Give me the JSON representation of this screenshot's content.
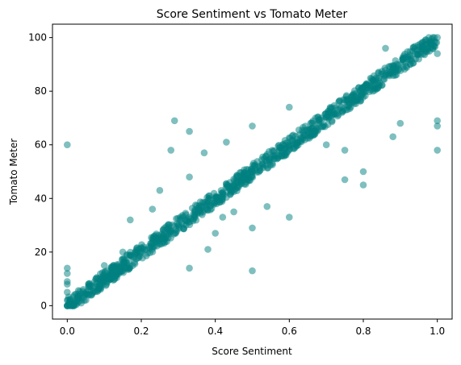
{
  "chart_data": {
    "type": "scatter",
    "title": "Score Sentiment vs Tomato Meter",
    "xlabel": "Score Sentiment",
    "ylabel": "Tomato Meter",
    "xlim": [
      -0.04,
      1.04
    ],
    "ylim": [
      -5,
      105
    ],
    "xticks": [
      0.0,
      0.2,
      0.4,
      0.6,
      0.8,
      1.0
    ],
    "xtick_labels": [
      "0.0",
      "0.2",
      "0.4",
      "0.6",
      "0.8",
      "1.0"
    ],
    "yticks": [
      0,
      20,
      40,
      60,
      80,
      100
    ],
    "ytick_labels": [
      "0",
      "20",
      "40",
      "60",
      "80",
      "100"
    ],
    "grid": false,
    "marker_color": "#008080",
    "marker_alpha": 0.5,
    "points": [
      [
        0.0,
        0
      ],
      [
        0.0,
        2
      ],
      [
        0.0,
        5
      ],
      [
        0.0,
        8
      ],
      [
        0.0,
        9
      ],
      [
        0.0,
        12
      ],
      [
        0.0,
        14
      ],
      [
        0.0,
        60
      ],
      [
        0.02,
        2
      ],
      [
        0.03,
        3
      ],
      [
        0.05,
        5
      ],
      [
        0.06,
        7
      ],
      [
        0.08,
        8
      ],
      [
        0.1,
        10
      ],
      [
        0.1,
        15
      ],
      [
        0.12,
        12
      ],
      [
        0.14,
        14
      ],
      [
        0.15,
        20
      ],
      [
        0.16,
        16
      ],
      [
        0.17,
        32
      ],
      [
        0.18,
        18
      ],
      [
        0.2,
        20
      ],
      [
        0.22,
        22
      ],
      [
        0.23,
        36
      ],
      [
        0.24,
        24
      ],
      [
        0.25,
        43
      ],
      [
        0.26,
        26
      ],
      [
        0.28,
        28
      ],
      [
        0.28,
        58
      ],
      [
        0.29,
        69
      ],
      [
        0.3,
        30
      ],
      [
        0.32,
        32
      ],
      [
        0.33,
        14
      ],
      [
        0.33,
        48
      ],
      [
        0.33,
        65
      ],
      [
        0.34,
        34
      ],
      [
        0.36,
        36
      ],
      [
        0.37,
        57
      ],
      [
        0.38,
        38
      ],
      [
        0.38,
        21
      ],
      [
        0.4,
        40
      ],
      [
        0.4,
        27
      ],
      [
        0.42,
        42
      ],
      [
        0.42,
        33
      ],
      [
        0.43,
        61
      ],
      [
        0.44,
        44
      ],
      [
        0.45,
        35
      ],
      [
        0.46,
        46
      ],
      [
        0.48,
        48
      ],
      [
        0.5,
        50
      ],
      [
        0.5,
        13
      ],
      [
        0.5,
        29
      ],
      [
        0.5,
        67
      ],
      [
        0.52,
        52
      ],
      [
        0.54,
        54
      ],
      [
        0.54,
        37
      ],
      [
        0.56,
        56
      ],
      [
        0.58,
        58
      ],
      [
        0.6,
        60
      ],
      [
        0.6,
        33
      ],
      [
        0.6,
        74
      ],
      [
        0.62,
        62
      ],
      [
        0.64,
        64
      ],
      [
        0.66,
        66
      ],
      [
        0.68,
        68
      ],
      [
        0.7,
        70
      ],
      [
        0.7,
        60
      ],
      [
        0.72,
        72
      ],
      [
        0.74,
        74
      ],
      [
        0.75,
        47
      ],
      [
        0.75,
        58
      ],
      [
        0.76,
        76
      ],
      [
        0.78,
        78
      ],
      [
        0.8,
        80
      ],
      [
        0.8,
        45
      ],
      [
        0.8,
        50
      ],
      [
        0.82,
        82
      ],
      [
        0.84,
        84
      ],
      [
        0.86,
        86
      ],
      [
        0.86,
        96
      ],
      [
        0.88,
        88
      ],
      [
        0.88,
        63
      ],
      [
        0.9,
        90
      ],
      [
        0.9,
        68
      ],
      [
        0.92,
        92
      ],
      [
        0.94,
        94
      ],
      [
        0.96,
        96
      ],
      [
        0.98,
        98
      ],
      [
        1.0,
        100
      ],
      [
        1.0,
        58
      ],
      [
        1.0,
        67
      ],
      [
        1.0,
        69
      ],
      [
        1.0,
        94
      ]
    ]
  }
}
